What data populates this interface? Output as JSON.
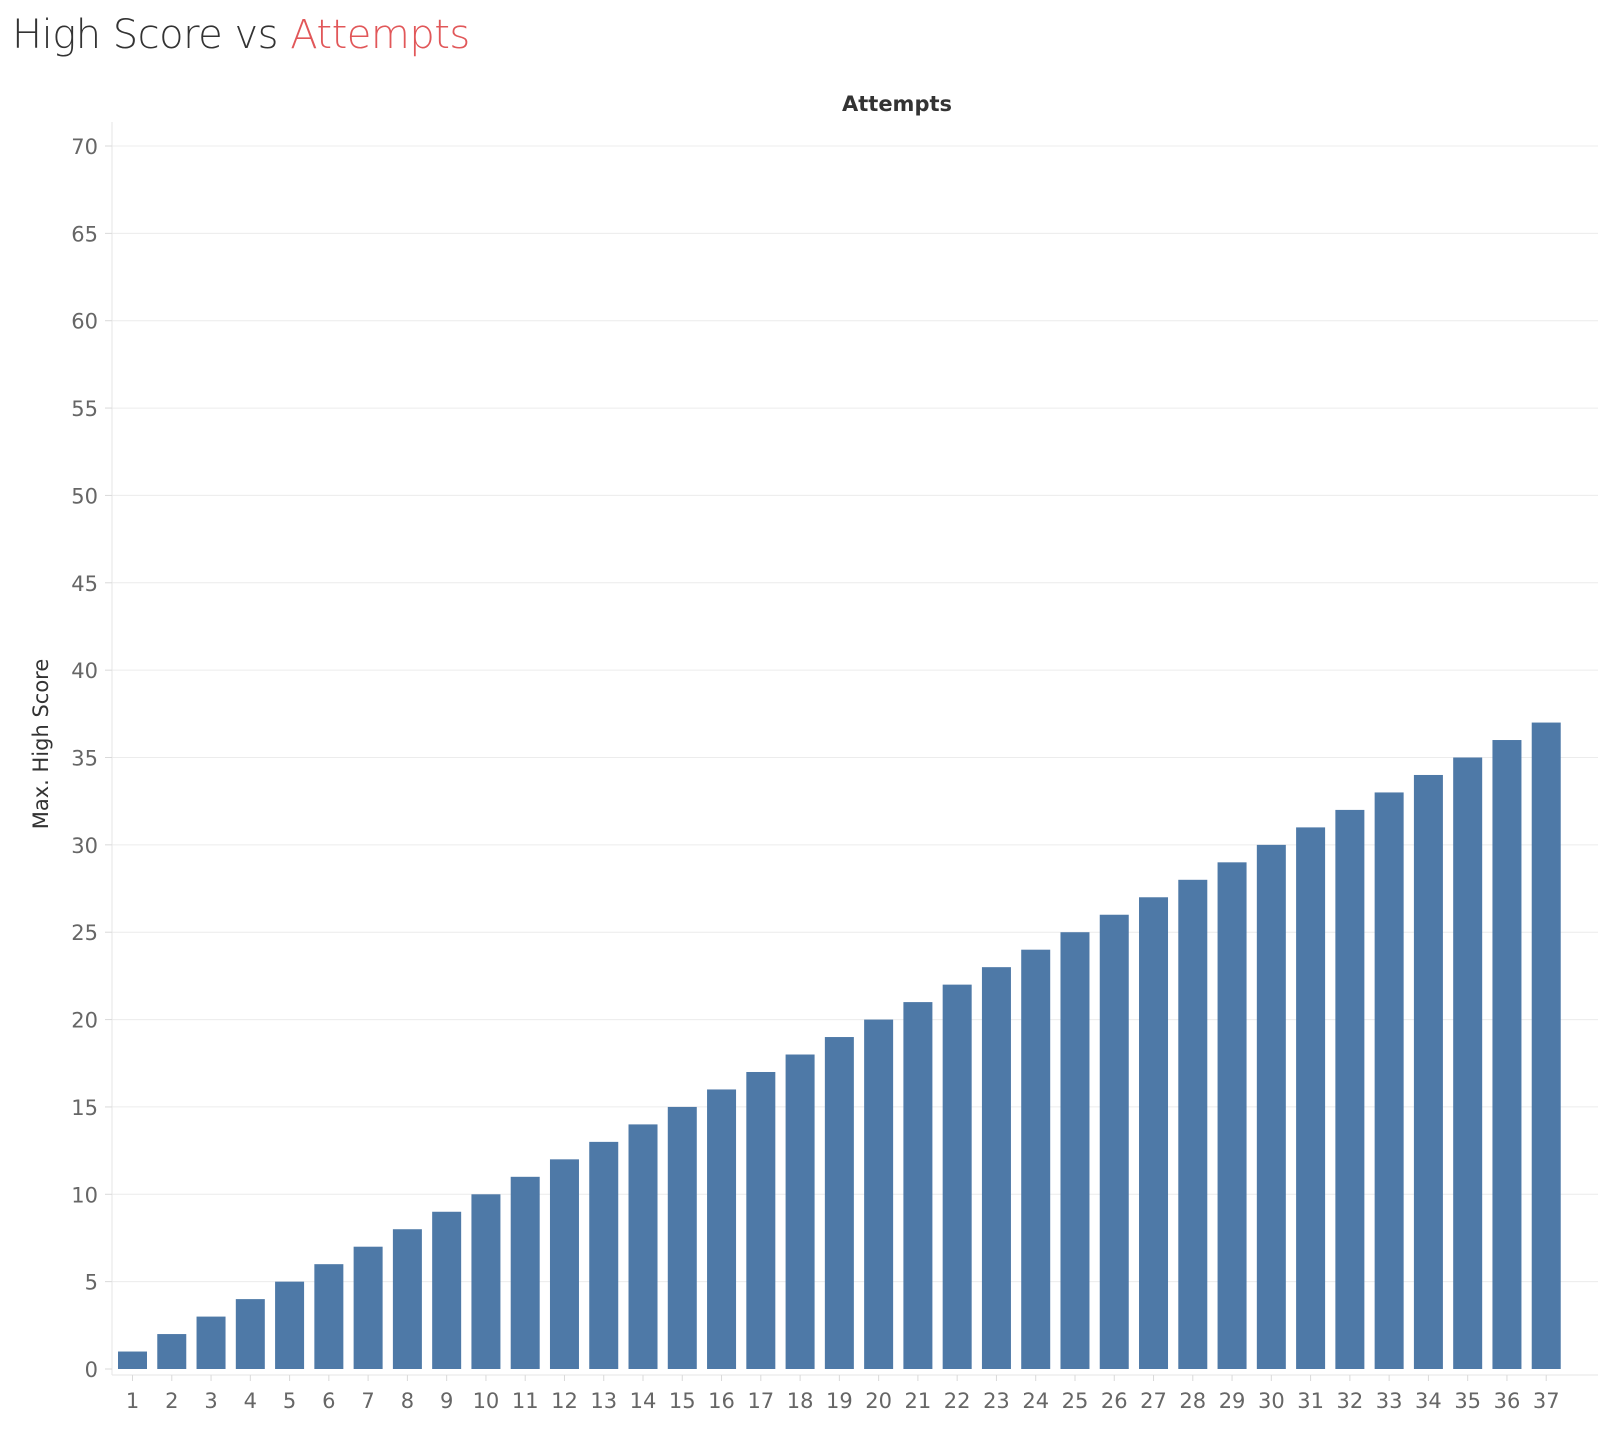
{
  "title": {
    "part1": "High Score vs ",
    "part2": "Attempts",
    "accent_color": "#e15759"
  },
  "chart_data": {
    "type": "bar",
    "xlabel": "Attempts",
    "ylabel": "Max. High Score",
    "categories": [
      "1",
      "2",
      "3",
      "4",
      "5",
      "6",
      "7",
      "8",
      "9",
      "10",
      "11",
      "12",
      "13",
      "14",
      "15",
      "16",
      "17",
      "18",
      "19",
      "20",
      "21",
      "22",
      "23",
      "24",
      "25",
      "26",
      "27",
      "28",
      "29",
      "30",
      "31",
      "32",
      "33",
      "34",
      "35",
      "36",
      "37"
    ],
    "series": [
      {
        "values": [
          1,
          2,
          3,
          4,
          5,
          6,
          7,
          8,
          9,
          10,
          11,
          12,
          13,
          14,
          15,
          16,
          17,
          18,
          19,
          20,
          21,
          22,
          23,
          24,
          25,
          26,
          27,
          28,
          29,
          30,
          31,
          32,
          33,
          34,
          35,
          36,
          37
        ],
        "color": "#4e79a7"
      }
    ],
    "ylim": [
      0,
      70
    ],
    "yticks": [
      0,
      5,
      10,
      15,
      20,
      25,
      30,
      35,
      40,
      45,
      50,
      55,
      60,
      65,
      70
    ],
    "grid": true,
    "xlabel_position": "top"
  }
}
